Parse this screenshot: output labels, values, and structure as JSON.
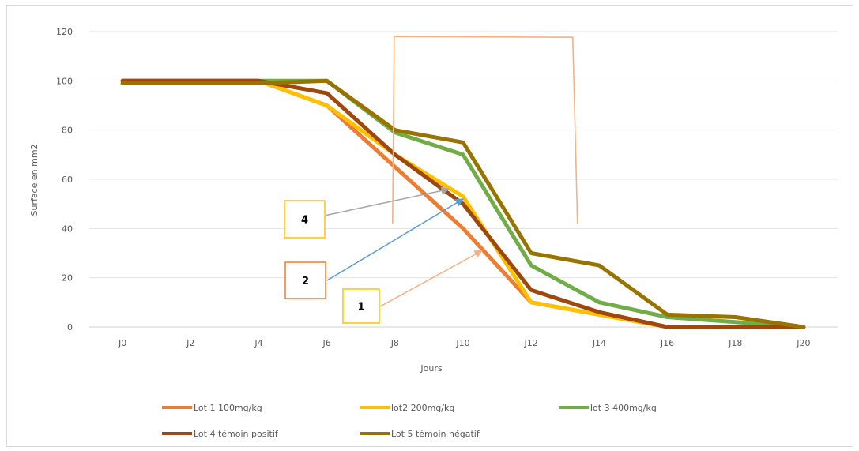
{
  "chart_data": {
    "type": "line",
    "title": "",
    "xlabel": "Jours",
    "ylabel": "Surface en mm2",
    "ylim": [
      0,
      120
    ],
    "yticks": [
      0,
      20,
      40,
      60,
      80,
      100,
      120
    ],
    "grid": true,
    "legend_position": "bottom",
    "categories": [
      "J0",
      "J2",
      "J4",
      "J6",
      "J8",
      "J10",
      "J12",
      "J14",
      "J16",
      "J18",
      "J20"
    ],
    "series": [
      {
        "name": "Lot 1 100mg/kg",
        "color": "#ED7D31",
        "values": [
          100,
          100,
          100,
          90,
          65,
          40,
          10,
          5,
          0,
          0,
          0
        ]
      },
      {
        "name": "lot2 200mg/kg",
        "color": "#FFC000",
        "values": [
          100,
          100,
          100,
          90,
          70,
          53,
          10,
          5,
          0,
          0,
          0
        ]
      },
      {
        "name": "lot 3 400mg/kg",
        "color": "#70AD47",
        "values": [
          100,
          100,
          100,
          100,
          79,
          70,
          25,
          10,
          4,
          2,
          0
        ]
      },
      {
        "name": "Lot 4 témoin positif",
        "color": "#9E480E",
        "values": [
          100,
          100,
          100,
          95,
          70,
          50,
          15,
          6,
          0,
          0,
          0
        ]
      },
      {
        "name": "Lot 5 témoin négatif",
        "color": "#997300",
        "values": [
          99,
          99,
          99,
          100,
          80,
          75,
          30,
          25,
          5,
          4,
          0
        ]
      }
    ],
    "annotations": [
      {
        "label": "4",
        "box_color": "#FFC000",
        "arrow_color": "#A5A5A5",
        "points_to": {
          "x": "J10",
          "y": 56
        }
      },
      {
        "label": "2",
        "box_color": "#ED7D31",
        "arrow_color": "#5B9BD5",
        "points_to": {
          "x": "J10",
          "y": 52
        }
      },
      {
        "label": "1",
        "box_color": "#FFC000",
        "arrow_color": "#F4B183",
        "points_to": {
          "x": "J10",
          "y": 31
        }
      }
    ],
    "bracket_color": "#F4B183"
  }
}
